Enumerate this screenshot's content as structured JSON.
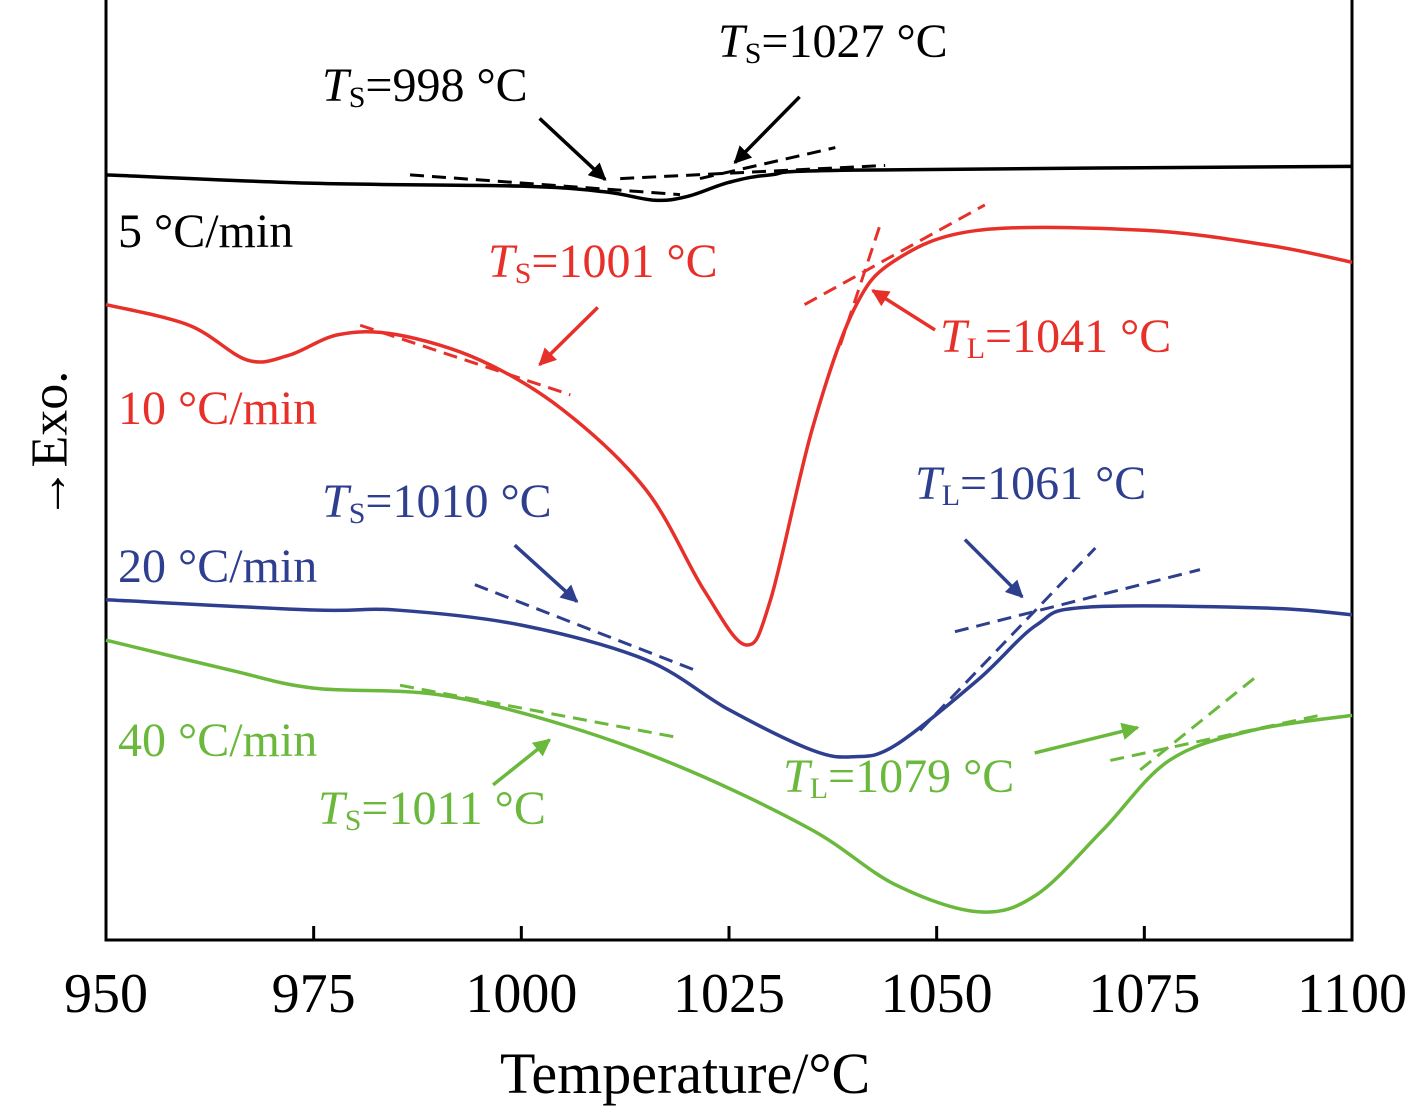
{
  "chart_data": {
    "type": "line",
    "title": "",
    "xlabel": "Temperature/°C",
    "ylabel": "→Exo.",
    "xlim": [
      950,
      1100
    ],
    "ylim": [
      0,
      100
    ],
    "xticks": [
      "950",
      "975",
      "1000",
      "1025",
      "1050",
      "1075",
      "1100"
    ],
    "grid": false,
    "series": [
      {
        "name": "5 °C/min",
        "color": "#000000",
        "x": [
          950,
          975,
          1000,
          1010,
          1016,
          1020,
          1025,
          1030,
          1040,
          1100
        ],
        "y": [
          81.4,
          80.5,
          80.2,
          79.6,
          78.7,
          79.1,
          80.6,
          81.4,
          81.9,
          82.3
        ]
      },
      {
        "name": "10 °C/min",
        "color": "#e8302a",
        "x": [
          950,
          960,
          967,
          972,
          978,
          985,
          995,
          1005,
          1015,
          1022,
          1027,
          1030,
          1035,
          1040,
          1045,
          1055,
          1075,
          1090,
          1100
        ],
        "y": [
          67.6,
          65.4,
          61.7,
          62.2,
          64.4,
          64.4,
          61.7,
          56.4,
          47.9,
          37.2,
          31.4,
          36.2,
          54.3,
          67.0,
          72.3,
          75.5,
          75.5,
          73.9,
          72.1
        ]
      },
      {
        "name": "20 °C/min",
        "color": "#2e3f8f",
        "x": [
          950,
          975,
          985,
          1000,
          1015,
          1025,
          1035,
          1040,
          1045,
          1055,
          1062,
          1068,
          1090,
          1100
        ],
        "y": [
          36.2,
          35.1,
          35.1,
          33.5,
          29.8,
          24.5,
          20.2,
          19.5,
          20.7,
          27.7,
          33.5,
          35.4,
          35.3,
          34.6
        ]
      },
      {
        "name": "40 °C/min",
        "color": "#6ab83c",
        "x": [
          950,
          965,
          975,
          990,
          1005,
          1020,
          1035,
          1045,
          1055,
          1062,
          1070,
          1078,
          1088,
          1100
        ],
        "y": [
          31.9,
          28.7,
          26.8,
          26.1,
          22.9,
          18.1,
          11.7,
          5.9,
          3.0,
          4.8,
          11.7,
          19.1,
          22.3,
          23.9
        ]
      }
    ],
    "tangents": [
      {
        "series": 0,
        "x": [
          986.6,
          1019.1
        ],
        "y": [
          81.4,
          79.3
        ]
      },
      {
        "series": 0,
        "x": [
          1021.5,
          1037.8
        ],
        "y": [
          81.0,
          84.3
        ]
      },
      {
        "series": 0,
        "x": [
          1011.9,
          1043.8
        ],
        "y": [
          81.0,
          82.4
        ]
      },
      {
        "series": 1,
        "x": [
          980.6,
          1005.9
        ],
        "y": [
          65.4,
          58.0
        ]
      },
      {
        "series": 1,
        "x": [
          1034.1,
          1055.8
        ],
        "y": [
          67.6,
          78.2
        ]
      },
      {
        "series": 1,
        "x": [
          1038.4,
          1043.2
        ],
        "y": [
          63.3,
          76.1
        ]
      },
      {
        "series": 2,
        "x": [
          994.4,
          1021.5
        ],
        "y": [
          37.8,
          28.5
        ]
      },
      {
        "series": 2,
        "x": [
          1052.2,
          1081.7
        ],
        "y": [
          32.8,
          39.4
        ]
      },
      {
        "series": 2,
        "x": [
          1048.0,
          1069.1
        ],
        "y": [
          22.3,
          41.7
        ]
      },
      {
        "series": 3,
        "x": [
          985.4,
          1019.1
        ],
        "y": [
          27.1,
          21.5
        ]
      },
      {
        "series": 3,
        "x": [
          1070.9,
          1096.1
        ],
        "y": [
          19.1,
          23.9
        ]
      },
      {
        "series": 3,
        "x": [
          1074.5,
          1088.3
        ],
        "y": [
          18.1,
          27.9
        ]
      }
    ],
    "annotations": [
      {
        "series": 0,
        "symbol": "T",
        "sub": "S",
        "value": "=998 °C",
        "arrow_from": [
          1002.2,
          87.4
        ],
        "arrow_to": [
          1010.1,
          80.9
        ]
      },
      {
        "series": 0,
        "symbol": "T",
        "sub": "S",
        "value": "=1027 °C",
        "arrow_from": [
          1033.5,
          89.7
        ],
        "arrow_to": [
          1025.7,
          82.7
        ]
      },
      {
        "series": 1,
        "symbol": "T",
        "sub": "S",
        "value": "=1001 °C",
        "arrow_from": [
          1009.2,
          67.3
        ],
        "arrow_to": [
          1002.2,
          61.2
        ]
      },
      {
        "series": 1,
        "symbol": "T",
        "sub": "L",
        "value": "=1041 °C",
        "arrow_from": [
          1049.8,
          64.9
        ],
        "arrow_to": [
          1042.3,
          69.1
        ]
      },
      {
        "series": 2,
        "symbol": "T",
        "sub": "S",
        "value": "=1010 °C",
        "arrow_from": [
          999.2,
          42.0
        ],
        "arrow_to": [
          1006.7,
          36.0
        ]
      },
      {
        "series": 2,
        "symbol": "T",
        "sub": "L",
        "value": "=1061 °C",
        "arrow_from": [
          1053.4,
          42.6
        ],
        "arrow_to": [
          1060.3,
          36.5
        ]
      },
      {
        "series": 3,
        "symbol": "T",
        "sub": "S",
        "value": "=1011 °C",
        "arrow_from": [
          996.6,
          16.5
        ],
        "arrow_to": [
          1003.4,
          21.3
        ]
      },
      {
        "series": 3,
        "symbol": "T",
        "sub": "L",
        "value": "=1079 °C",
        "arrow_from": [
          1061.8,
          19.9
        ],
        "arrow_to": [
          1074.2,
          22.6
        ]
      }
    ]
  }
}
